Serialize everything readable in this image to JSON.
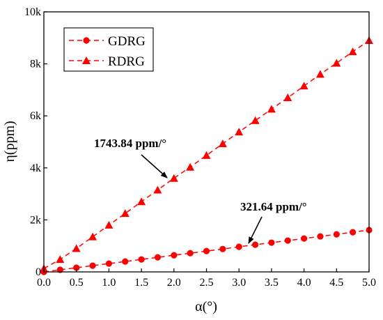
{
  "chart_data": {
    "type": "line",
    "title": "",
    "xlabel": "α(°)",
    "ylabel": "η(ppm)",
    "xlim": [
      0,
      5
    ],
    "ylim": [
      0,
      10000
    ],
    "x_ticks": [
      0,
      0.5,
      1,
      1.5,
      2,
      2.5,
      3,
      3.5,
      4,
      4.5,
      5
    ],
    "x_tick_labels": [
      "0.0",
      "0.5",
      "1.0",
      "1.5",
      "2.0",
      "2.5",
      "3.0",
      "3.5",
      "4.0",
      "4.5",
      "5.0"
    ],
    "y_ticks": [
      0,
      2000,
      4000,
      6000,
      8000,
      10000
    ],
    "y_tick_labels": [
      "0",
      "2k",
      "4k",
      "6k",
      "8k",
      "10k"
    ],
    "grid": false,
    "legend_position": "top-left",
    "color": "#ff0000",
    "series": [
      {
        "name": "GDRG",
        "marker": "circle",
        "x": [
          0,
          0.25,
          0.5,
          0.75,
          1.0,
          1.25,
          1.5,
          1.75,
          2.0,
          2.25,
          2.5,
          2.75,
          3.0,
          3.25,
          3.5,
          3.75,
          4.0,
          4.25,
          4.5,
          4.75,
          5.0
        ],
        "values": [
          0,
          80,
          160,
          240,
          320,
          400,
          480,
          560,
          640,
          720,
          800,
          880,
          965,
          1045,
          1125,
          1205,
          1285,
          1365,
          1445,
          1525,
          1610
        ]
      },
      {
        "name": "RDRG",
        "marker": "triangle",
        "x": [
          0,
          0.25,
          0.5,
          0.75,
          1.0,
          1.25,
          1.5,
          1.75,
          2.0,
          2.25,
          2.5,
          2.75,
          3.0,
          3.25,
          3.5,
          3.75,
          4.0,
          4.25,
          4.5,
          4.75,
          5.0
        ],
        "values": [
          130,
          480,
          900,
          1350,
          1800,
          2250,
          2700,
          3150,
          3600,
          4030,
          4480,
          4930,
          5380,
          5820,
          6260,
          6700,
          7150,
          7600,
          8030,
          8470,
          8900
        ]
      }
    ],
    "annotations": [
      {
        "text": "1743.84 ppm/°",
        "x": 2.0,
        "y": 3600
      },
      {
        "text": "321.64 ppm/°",
        "x": 3.1,
        "y": 997
      }
    ]
  }
}
